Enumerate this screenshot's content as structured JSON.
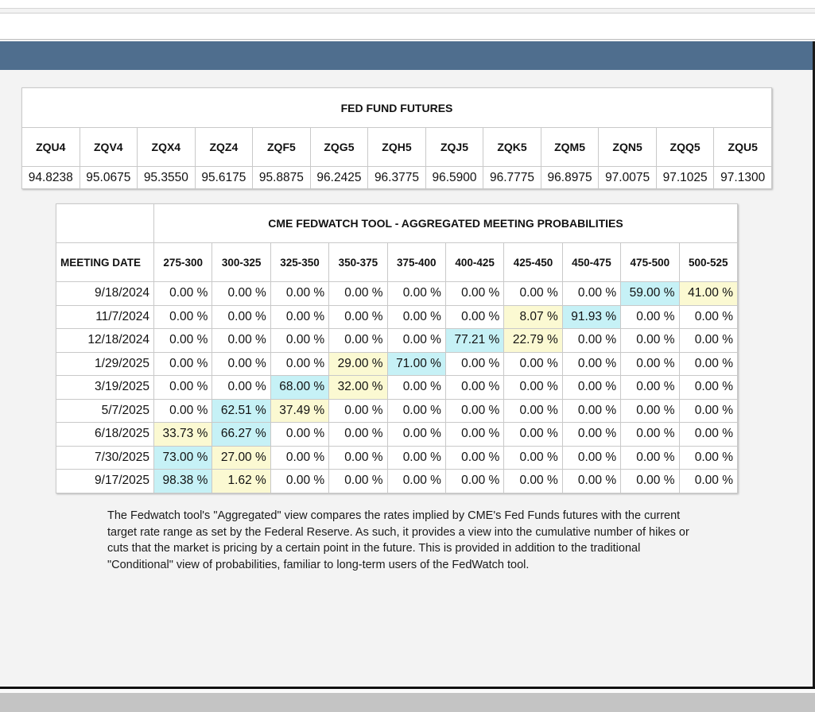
{
  "futures": {
    "title": "FED FUND FUTURES",
    "symbols": [
      "ZQU4",
      "ZQV4",
      "ZQX4",
      "ZQZ4",
      "ZQF5",
      "ZQG5",
      "ZQH5",
      "ZQJ5",
      "ZQK5",
      "ZQM5",
      "ZQN5",
      "ZQQ5",
      "ZQU5"
    ],
    "values": [
      "94.8238",
      "95.0675",
      "95.3550",
      "95.6175",
      "95.8875",
      "96.2425",
      "96.3775",
      "96.5900",
      "96.7775",
      "96.8975",
      "97.0075",
      "97.1025",
      "97.1300"
    ]
  },
  "fedwatch": {
    "title": "CME FEDWATCH TOOL - AGGREGATED MEETING PROBABILITIES",
    "meeting_date_label": "MEETING DATE",
    "ranges": [
      "275-300",
      "300-325",
      "325-350",
      "350-375",
      "375-400",
      "400-425",
      "425-450",
      "450-475",
      "475-500",
      "500-525"
    ],
    "rows": [
      {
        "date": "9/18/2024",
        "probs": [
          "0.00 %",
          "0.00 %",
          "0.00 %",
          "0.00 %",
          "0.00 %",
          "0.00 %",
          "0.00 %",
          "0.00 %",
          "59.00 %",
          "41.00 %"
        ],
        "hl": [
          "",
          "",
          "",
          "",
          "",
          "",
          "",
          "",
          "blue",
          "yellow"
        ]
      },
      {
        "date": "11/7/2024",
        "probs": [
          "0.00 %",
          "0.00 %",
          "0.00 %",
          "0.00 %",
          "0.00 %",
          "0.00 %",
          "8.07 %",
          "91.93 %",
          "0.00 %",
          "0.00 %"
        ],
        "hl": [
          "",
          "",
          "",
          "",
          "",
          "",
          "yellow",
          "blue",
          "",
          ""
        ]
      },
      {
        "date": "12/18/2024",
        "probs": [
          "0.00 %",
          "0.00 %",
          "0.00 %",
          "0.00 %",
          "0.00 %",
          "77.21 %",
          "22.79 %",
          "0.00 %",
          "0.00 %",
          "0.00 %"
        ],
        "hl": [
          "",
          "",
          "",
          "",
          "",
          "blue",
          "yellow",
          "",
          "",
          ""
        ]
      },
      {
        "date": "1/29/2025",
        "probs": [
          "0.00 %",
          "0.00 %",
          "0.00 %",
          "29.00 %",
          "71.00 %",
          "0.00 %",
          "0.00 %",
          "0.00 %",
          "0.00 %",
          "0.00 %"
        ],
        "hl": [
          "",
          "",
          "",
          "yellow",
          "blue",
          "",
          "",
          "",
          "",
          ""
        ]
      },
      {
        "date": "3/19/2025",
        "probs": [
          "0.00 %",
          "0.00 %",
          "68.00 %",
          "32.00 %",
          "0.00 %",
          "0.00 %",
          "0.00 %",
          "0.00 %",
          "0.00 %",
          "0.00 %"
        ],
        "hl": [
          "",
          "",
          "blue",
          "yellow",
          "",
          "",
          "",
          "",
          "",
          ""
        ]
      },
      {
        "date": "5/7/2025",
        "probs": [
          "0.00 %",
          "62.51 %",
          "37.49 %",
          "0.00 %",
          "0.00 %",
          "0.00 %",
          "0.00 %",
          "0.00 %",
          "0.00 %",
          "0.00 %"
        ],
        "hl": [
          "",
          "blue",
          "yellow",
          "",
          "",
          "",
          "",
          "",
          "",
          ""
        ]
      },
      {
        "date": "6/18/2025",
        "probs": [
          "33.73 %",
          "66.27 %",
          "0.00 %",
          "0.00 %",
          "0.00 %",
          "0.00 %",
          "0.00 %",
          "0.00 %",
          "0.00 %",
          "0.00 %"
        ],
        "hl": [
          "yellow",
          "blue",
          "",
          "",
          "",
          "",
          "",
          "",
          "",
          ""
        ]
      },
      {
        "date": "7/30/2025",
        "probs": [
          "73.00 %",
          "27.00 %",
          "0.00 %",
          "0.00 %",
          "0.00 %",
          "0.00 %",
          "0.00 %",
          "0.00 %",
          "0.00 %",
          "0.00 %"
        ],
        "hl": [
          "blue",
          "yellow",
          "",
          "",
          "",
          "",
          "",
          "",
          "",
          ""
        ]
      },
      {
        "date": "9/17/2025",
        "probs": [
          "98.38 %",
          "1.62 %",
          "0.00 %",
          "0.00 %",
          "0.00 %",
          "0.00 %",
          "0.00 %",
          "0.00 %",
          "0.00 %",
          "0.00 %"
        ],
        "hl": [
          "blue",
          "yellow",
          "",
          "",
          "",
          "",
          "",
          "",
          "",
          ""
        ]
      }
    ],
    "highlight_colors": {
      "blue": "#c6f1f6",
      "yellow": "#fbf9d2"
    }
  },
  "note": "The Fedwatch tool's \"Aggregated\" view compares the rates implied by CME's Fed Funds futures with the current target rate range as set by the Federal Reserve. As such, it provides a view into the cumulative number of hikes or cuts that the market is pricing by a certain point in the future. This is provided in addition to the traditional \"Conditional\" view of probabilities, familiar to long-term users of the FedWatch tool.",
  "colors": {
    "header_bar": "#4f6e8e",
    "background": "#f3f3f3"
  }
}
